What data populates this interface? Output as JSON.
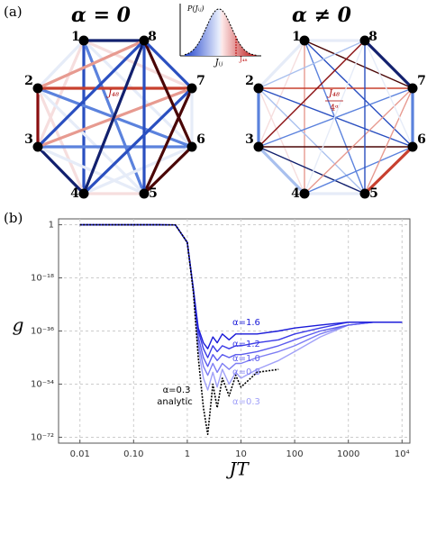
{
  "diagram": {
    "panel_label": "(a)",
    "graphs": [
      {
        "title": "α = 0",
        "nodes": [
          "1",
          "2",
          "3",
          "4",
          "5",
          "6",
          "7",
          "8"
        ],
        "edge_label": "J₄₈"
      },
      {
        "title": "α ≠ 0",
        "nodes": [
          "1",
          "2",
          "3",
          "4",
          "5",
          "6",
          "7",
          "8"
        ],
        "edge_label": "J₄₈",
        "edge_label_denominator": "4ᵅ"
      }
    ],
    "inset": {
      "ylabel": "P(Jᵢⱼ)",
      "xlabel": "Jᵢⱼ",
      "marker": "J₄₈"
    }
  },
  "chart_data": {
    "type": "line",
    "panel_label": "(b)",
    "xlabel": "JT",
    "ylabel": "g",
    "xscale": "log",
    "yscale": "log",
    "grid": true,
    "xlim": [
      0.004,
      14000
    ],
    "ylim": [
      100.0,
      1e-74
    ],
    "xticks": [
      0.01,
      {
        "value": 0.1,
        "label": "0.10"
      },
      1,
      10,
      100,
      1000,
      {
        "value": 10000,
        "label": "10⁴"
      }
    ],
    "yticks": [
      1,
      {
        "value": 1e-18,
        "label": "10⁻¹⁸"
      },
      {
        "value": 1e-36,
        "label": "10⁻³⁶"
      },
      {
        "value": 1e-54,
        "label": "10⁻⁵⁴"
      },
      {
        "value": 1e-72,
        "label": "10⁻⁷²"
      }
    ],
    "x": [
      0.01,
      0.1,
      0.3,
      0.6,
      1,
      1.3,
      1.6,
      2,
      2.4,
      3,
      3.6,
      4.5,
      6,
      8,
      10,
      20,
      50,
      100,
      300,
      1000,
      3000,
      10000
    ],
    "series": [
      {
        "name": "α=0.3",
        "color": "#a0a0f8",
        "values": [
          1,
          1,
          1,
          0.9,
          1e-06,
          1e-22,
          1e-42,
          1e-52,
          1e-56,
          1e-50,
          1e-55,
          1e-49,
          1e-54,
          1e-50,
          1e-52,
          1e-49,
          1e-46,
          1e-43,
          1e-38,
          1e-34,
          1e-33,
          1e-33
        ]
      },
      {
        "name": "α=0.8",
        "color": "#7d7df3",
        "values": [
          1,
          1,
          1,
          0.9,
          1e-06,
          1e-22,
          1e-40,
          1e-48,
          1e-51,
          1e-47,
          1e-50,
          1e-47,
          1e-49,
          1e-47,
          1e-47,
          1e-45,
          1e-43,
          1e-41,
          1e-37,
          1e-34,
          1e-33,
          1e-33
        ]
      },
      {
        "name": "α=1.0",
        "color": "#5c5cee",
        "values": [
          1,
          1,
          1,
          0.9,
          1e-06,
          1e-22,
          1e-38,
          1e-45,
          1e-48,
          1e-44,
          1e-46,
          1e-44,
          1e-45,
          1e-44,
          1e-44,
          1e-43,
          1e-41,
          1e-39,
          1e-36,
          1e-34,
          1e-33,
          1e-33
        ]
      },
      {
        "name": "α=1.2",
        "color": "#3a3ae6",
        "values": [
          1,
          1,
          1,
          0.9,
          1e-06,
          1e-22,
          1e-36,
          1e-42,
          1e-45,
          1e-41,
          1e-43,
          1e-41,
          1e-42,
          1e-41,
          1e-41,
          1e-40,
          1e-39,
          1e-37,
          1e-35,
          1e-33,
          1e-33,
          1e-33
        ]
      },
      {
        "name": "α=1.6",
        "color": "#1a1ad8",
        "values": [
          1,
          1,
          1,
          0.9,
          1e-06,
          1e-22,
          1e-35,
          1e-40,
          1e-42,
          1e-38,
          1e-40,
          1e-37,
          1e-39,
          1e-37,
          1e-37,
          1e-37,
          1e-36,
          1e-35,
          1e-34,
          1e-33,
          1e-33,
          1e-33
        ]
      },
      {
        "name": "analytic",
        "color": "#000000",
        "dashed": true,
        "values": [
          1,
          1,
          1,
          0.9,
          1e-06,
          1e-23,
          1e-45,
          1e-62,
          1e-71,
          1e-54,
          1e-62,
          1e-52,
          1e-58,
          1e-51,
          1e-55,
          1e-50,
          1e-49,
          null,
          null,
          null,
          null,
          null
        ]
      }
    ]
  }
}
